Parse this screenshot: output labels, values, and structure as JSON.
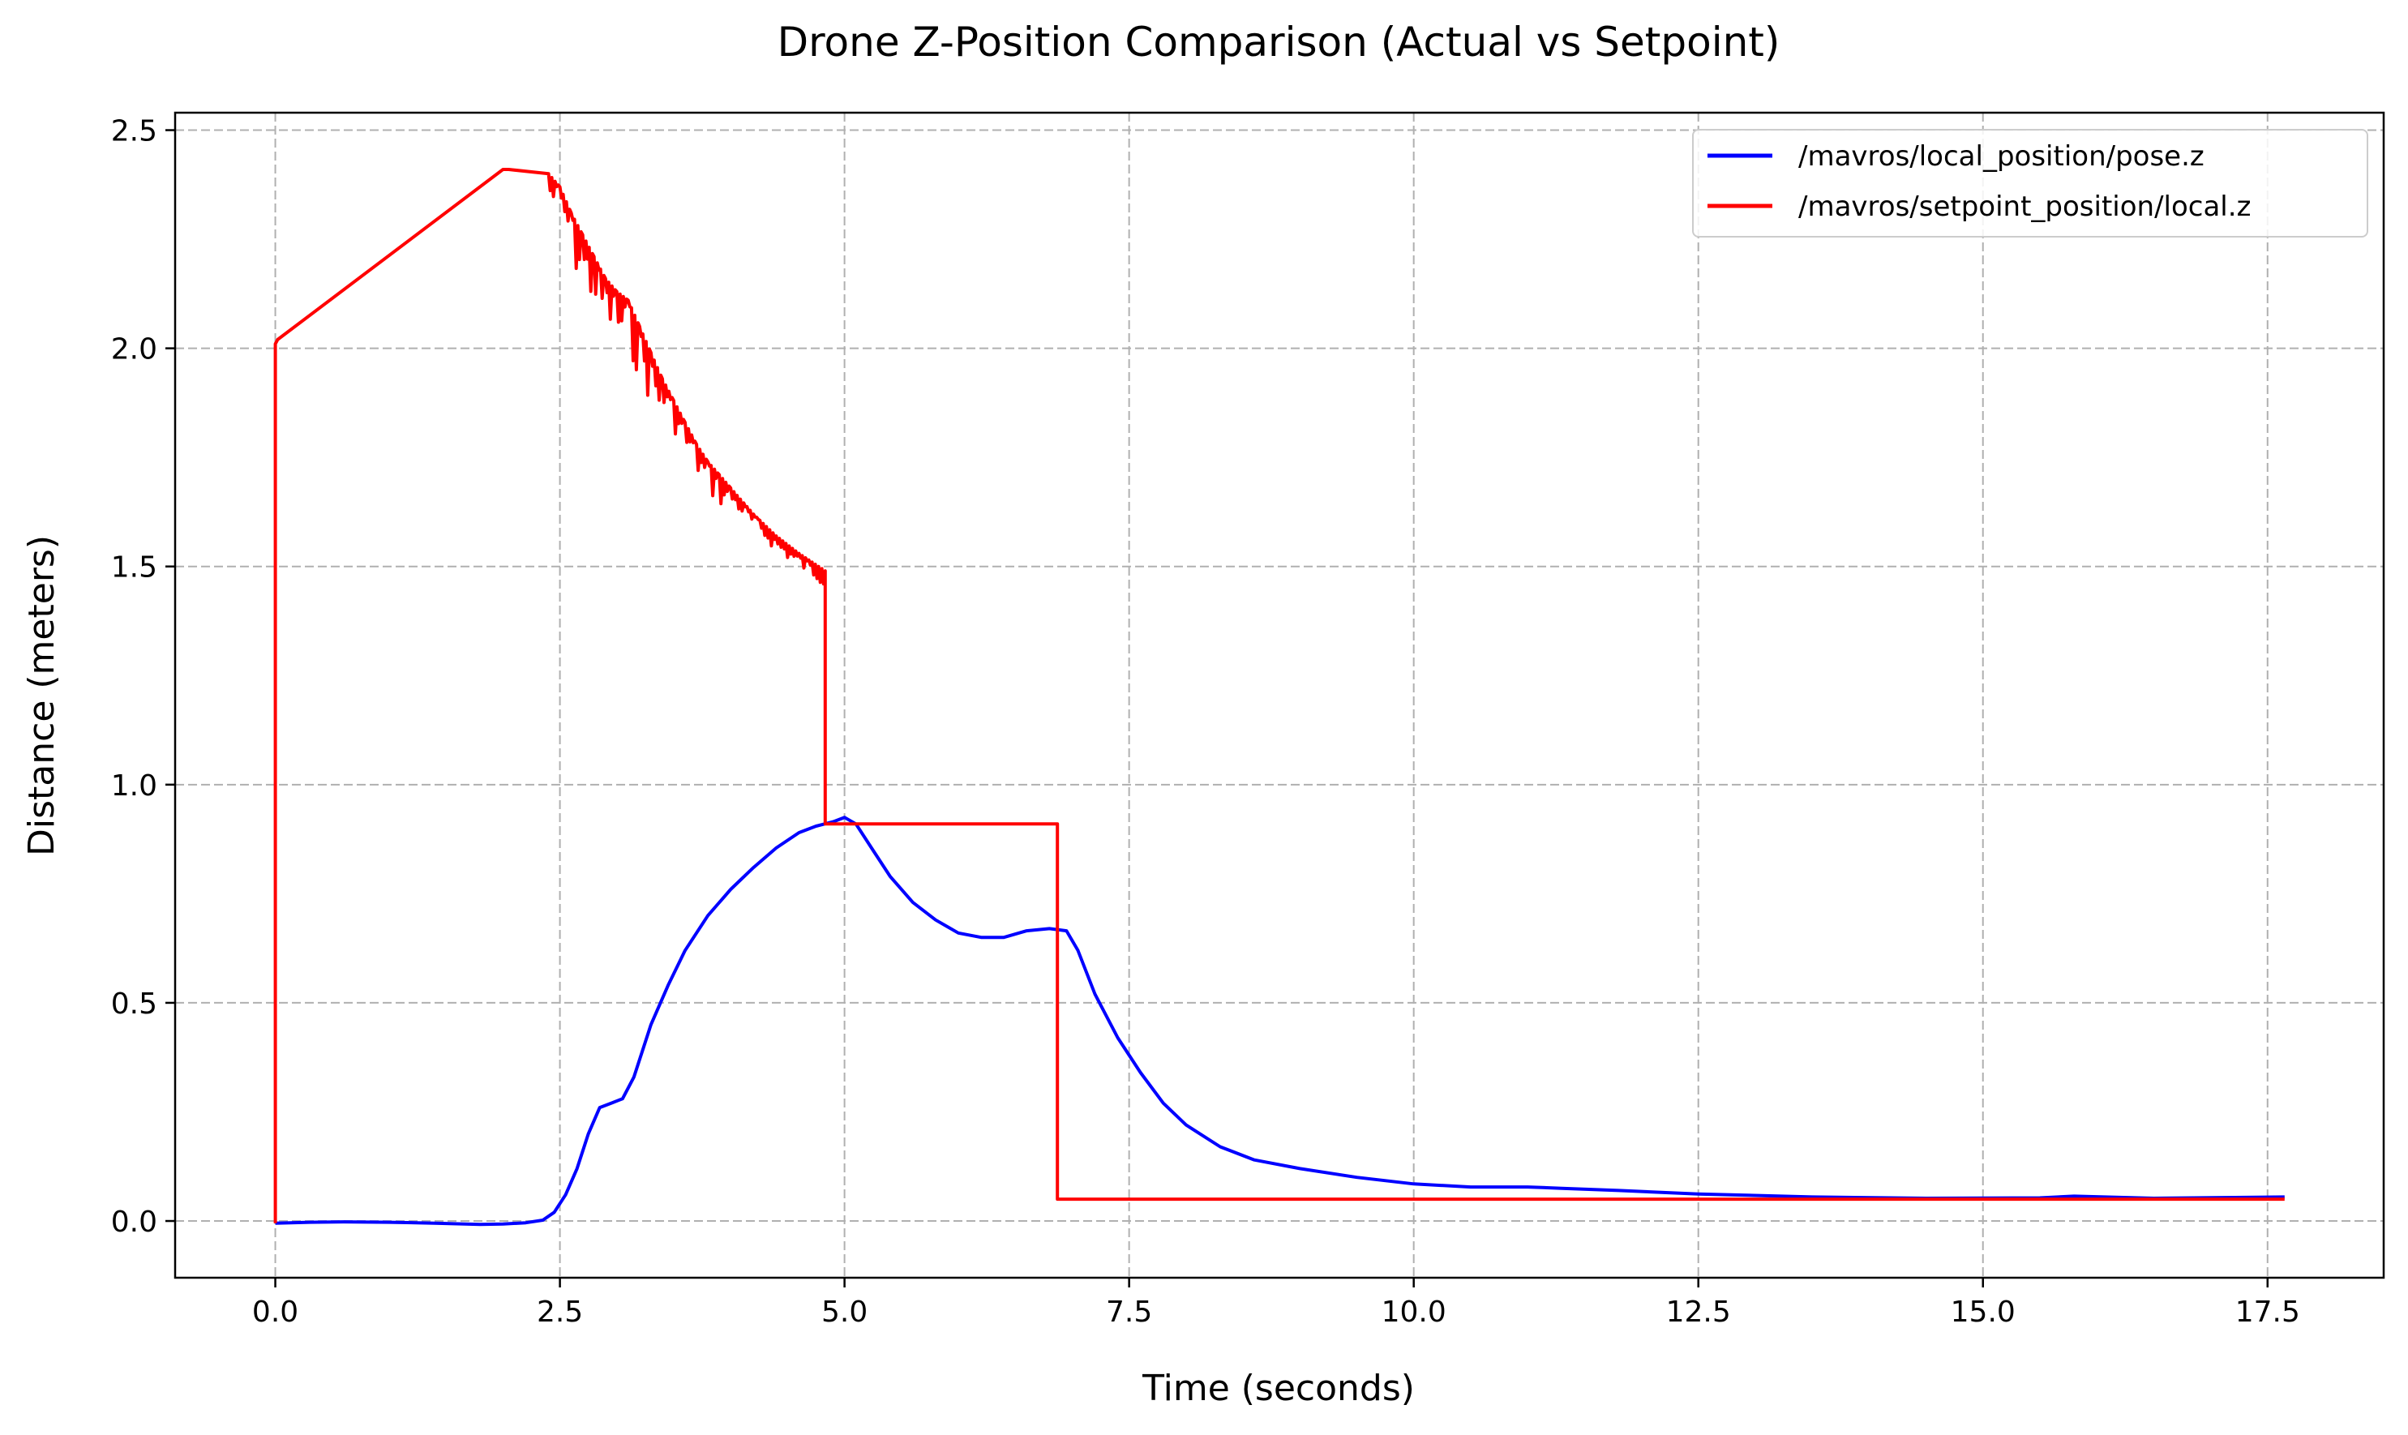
{
  "chart_data": {
    "type": "line",
    "title": "Drone Z-Position Comparison (Actual vs Setpoint)",
    "xlabel": "Time (seconds)",
    "ylabel": "Distance (meters)",
    "xlim": [
      -0.88,
      18.52
    ],
    "ylim": [
      -0.13,
      2.54
    ],
    "xticks": [
      0.0,
      2.5,
      5.0,
      7.5,
      10.0,
      12.5,
      15.0,
      17.5
    ],
    "xtick_labels": [
      "0.0",
      "2.5",
      "5.0",
      "7.5",
      "10.0",
      "12.5",
      "15.0",
      "17.5"
    ],
    "yticks": [
      0.0,
      0.5,
      1.0,
      1.5,
      2.0,
      2.5
    ],
    "ytick_labels": [
      "0.0",
      "0.5",
      "1.0",
      "1.5",
      "2.0",
      "2.5"
    ],
    "grid": true,
    "legend_position": "upper right",
    "series": [
      {
        "name": "/mavros/local_position/pose.z",
        "color": "#0000ff",
        "x": [
          0.0,
          0.3,
          0.6,
          1.0,
          1.4,
          1.8,
          2.0,
          2.2,
          2.35,
          2.45,
          2.55,
          2.65,
          2.75,
          2.85,
          2.95,
          3.05,
          3.15,
          3.3,
          3.45,
          3.6,
          3.8,
          4.0,
          4.2,
          4.4,
          4.6,
          4.75,
          4.9,
          5.0,
          5.1,
          5.25,
          5.4,
          5.6,
          5.8,
          6.0,
          6.2,
          6.4,
          6.6,
          6.8,
          6.95,
          7.05,
          7.2,
          7.4,
          7.6,
          7.8,
          8.0,
          8.3,
          8.6,
          9.0,
          9.5,
          10.0,
          10.5,
          11.0,
          11.3,
          11.8,
          12.5,
          13.5,
          14.5,
          15.5,
          15.8,
          16.5,
          17.65
        ],
        "y": [
          -0.005,
          -0.003,
          -0.002,
          -0.003,
          -0.005,
          -0.008,
          -0.007,
          -0.004,
          0.002,
          0.02,
          0.06,
          0.12,
          0.2,
          0.26,
          0.27,
          0.28,
          0.33,
          0.45,
          0.54,
          0.62,
          0.7,
          0.76,
          0.81,
          0.855,
          0.89,
          0.905,
          0.915,
          0.925,
          0.91,
          0.85,
          0.79,
          0.73,
          0.69,
          0.66,
          0.65,
          0.65,
          0.665,
          0.67,
          0.665,
          0.62,
          0.52,
          0.42,
          0.34,
          0.27,
          0.22,
          0.17,
          0.14,
          0.12,
          0.1,
          0.085,
          0.078,
          0.078,
          0.075,
          0.07,
          0.062,
          0.055,
          0.052,
          0.053,
          0.057,
          0.052,
          0.055
        ]
      },
      {
        "name": "/mavros/setpoint_position/local.z",
        "color": "#ff0000",
        "x": [
          0.0,
          0.0,
          0.02,
          2.0,
          2.05,
          2.4,
          2.5,
          2.6,
          2.7,
          2.8,
          2.9,
          3.0,
          3.1,
          3.2,
          3.3,
          3.4,
          3.5,
          3.6,
          3.7,
          3.8,
          3.9,
          4.0,
          4.2,
          4.4,
          4.6,
          4.83,
          4.83,
          4.84,
          6.87,
          6.87,
          6.88,
          17.65
        ],
        "y": [
          -0.005,
          2.01,
          2.02,
          2.41,
          2.41,
          2.4,
          2.37,
          2.31,
          2.26,
          2.21,
          2.16,
          2.13,
          2.11,
          2.05,
          1.99,
          1.93,
          1.88,
          1.83,
          1.78,
          1.74,
          1.71,
          1.68,
          1.62,
          1.57,
          1.53,
          1.49,
          0.91,
          0.91,
          0.91,
          0.05,
          0.05,
          0.05
        ],
        "noise_interval": [
          2.4,
          4.83
        ]
      }
    ]
  }
}
